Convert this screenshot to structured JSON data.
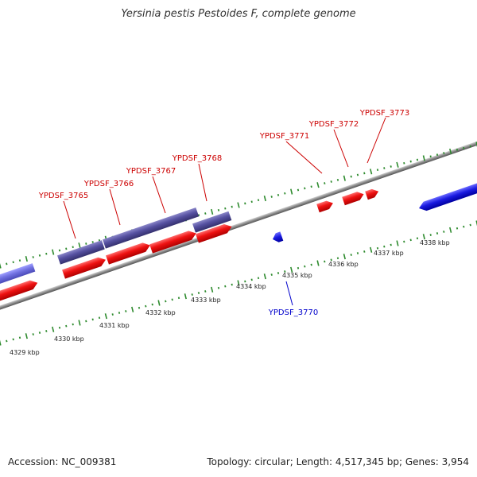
{
  "title": "Yersinia pestis Pestoides F, complete genome",
  "footer": {
    "accession": "Accession: NC_009381",
    "stats": "Topology: circular; Length: 4,517,345 bp; Genes: 3,954"
  },
  "colors": {
    "backbone": "#8a8a8a",
    "forward_cds": "#ee1111",
    "reverse_cds": "#1a1ae0",
    "forward_gene": "#5550a0",
    "reverse_gene": "#7070e0",
    "tick": "#2e8b2e",
    "forward_label": "#cc0000",
    "reverse_label": "#0000cc"
  },
  "kbp_scale": [
    "4329 kbp",
    "4330 kbp",
    "4331 kbp",
    "4332 kbp",
    "4333 kbp",
    "4334 kbp",
    "4335 kbp",
    "4336 kbp",
    "4337 kbp",
    "4338 kbp"
  ],
  "gene_labels": [
    {
      "name": "YPDSF_3765",
      "strand": "forward"
    },
    {
      "name": "YPDSF_3766",
      "strand": "forward"
    },
    {
      "name": "YPDSF_3767",
      "strand": "forward"
    },
    {
      "name": "YPDSF_3768",
      "strand": "forward"
    },
    {
      "name": "YPDSF_3770",
      "strand": "reverse"
    },
    {
      "name": "YPDSF_3771",
      "strand": "forward"
    },
    {
      "name": "YPDSF_3772",
      "strand": "forward"
    },
    {
      "name": "YPDSF_3773",
      "strand": "forward"
    }
  ]
}
